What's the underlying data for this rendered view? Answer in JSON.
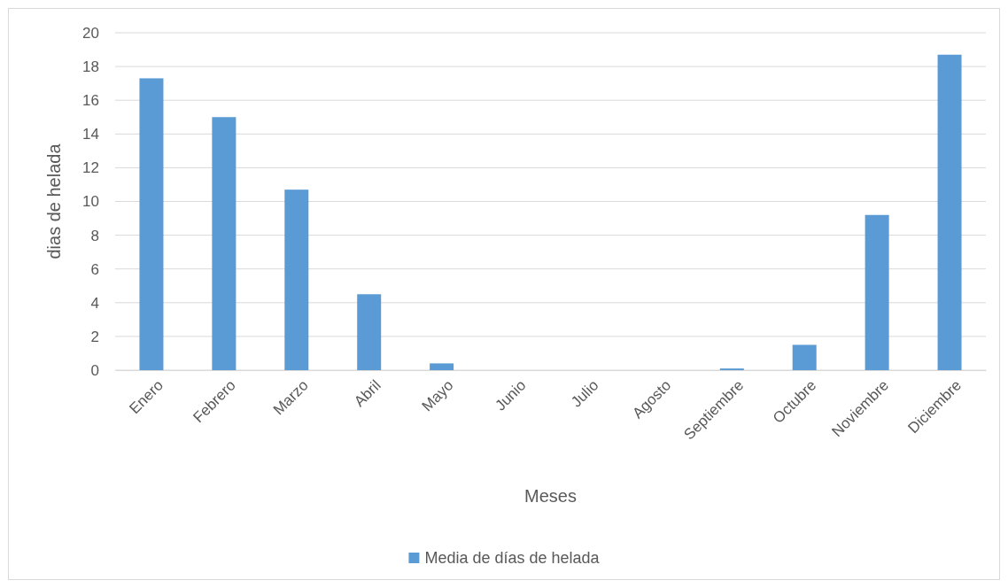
{
  "chart_data": {
    "type": "bar",
    "xlabel": "Meses",
    "ylabel": "dias de helada",
    "categories": [
      "Enero",
      "Febrero",
      "Marzo",
      "Abril",
      "Mayo",
      "Junio",
      "Julio",
      "Agosto",
      "Septiembre",
      "Octubre",
      "Noviembre",
      "Diciembre"
    ],
    "series": [
      {
        "name": "Media de días de helada",
        "color": "#5b9bd5",
        "values": [
          17.3,
          15.0,
          10.7,
          4.5,
          0.4,
          0,
          0,
          0,
          0.1,
          1.5,
          9.2,
          18.7
        ]
      }
    ],
    "ylim": [
      0,
      20
    ],
    "yticks": [
      0,
      2,
      4,
      6,
      8,
      10,
      12,
      14,
      16,
      18,
      20
    ],
    "grid": "y",
    "legend": "bottom"
  }
}
